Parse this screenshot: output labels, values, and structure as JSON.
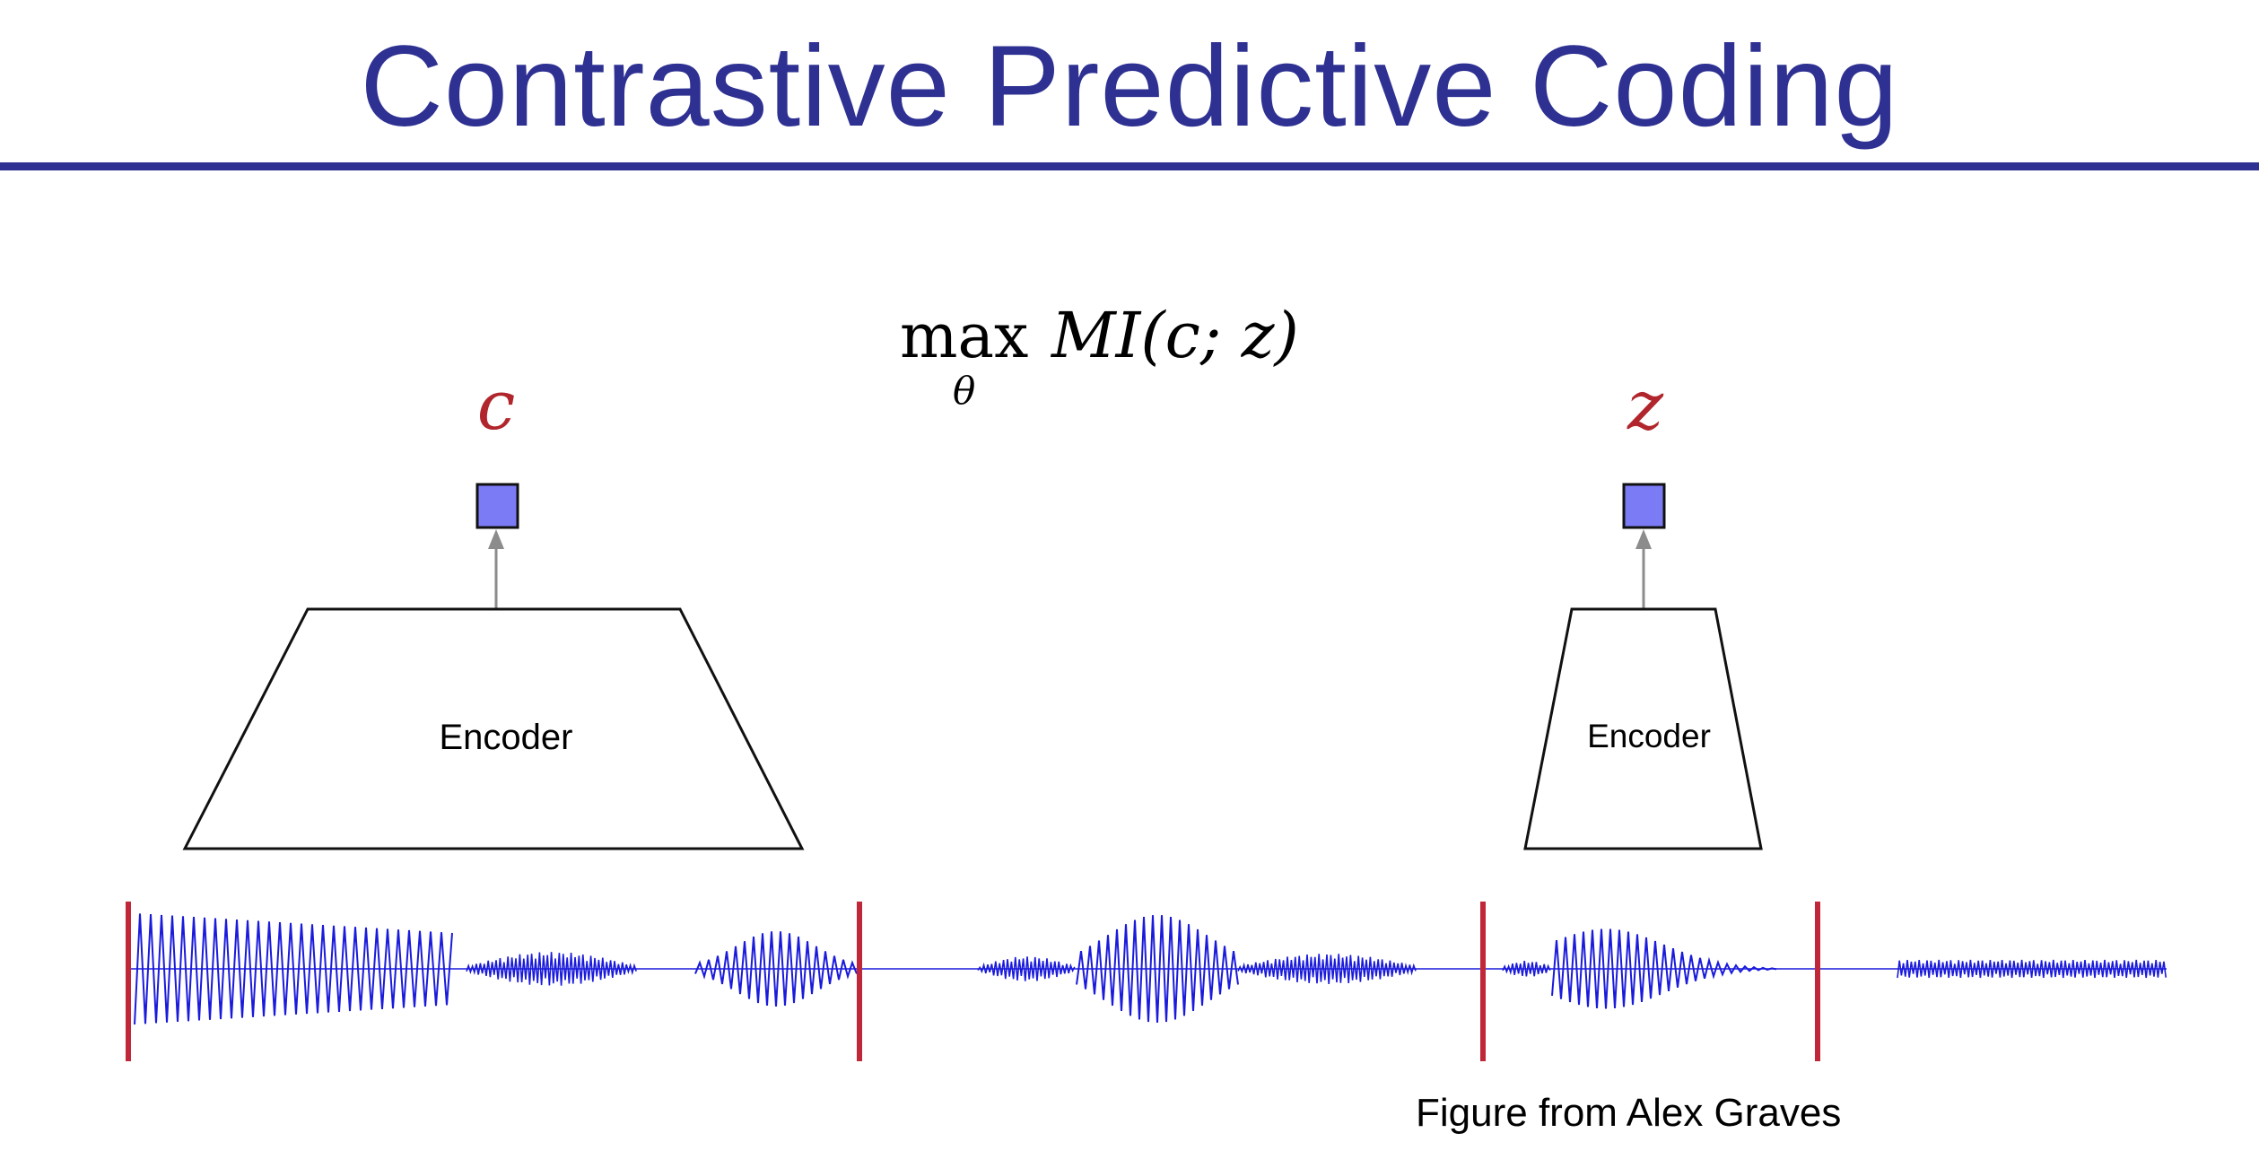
{
  "slide": {
    "title": "Contrastive Predictive Coding",
    "caption": "Figure from Alex Graves"
  },
  "objective": {
    "operator": "max",
    "subscript": "θ",
    "expression": "MI(c; z)"
  },
  "left_branch": {
    "symbol": "c",
    "encoder_label": "Encoder"
  },
  "right_branch": {
    "symbol": "z",
    "encoder_label": "Encoder"
  },
  "colors": {
    "title": "#2e3192",
    "symbol": "#b0262c",
    "code_box_fill": "#7b7bf6",
    "arrow": "#8c8c8c",
    "waveform": "#1a1adc",
    "boundary": "#c0283a"
  }
}
